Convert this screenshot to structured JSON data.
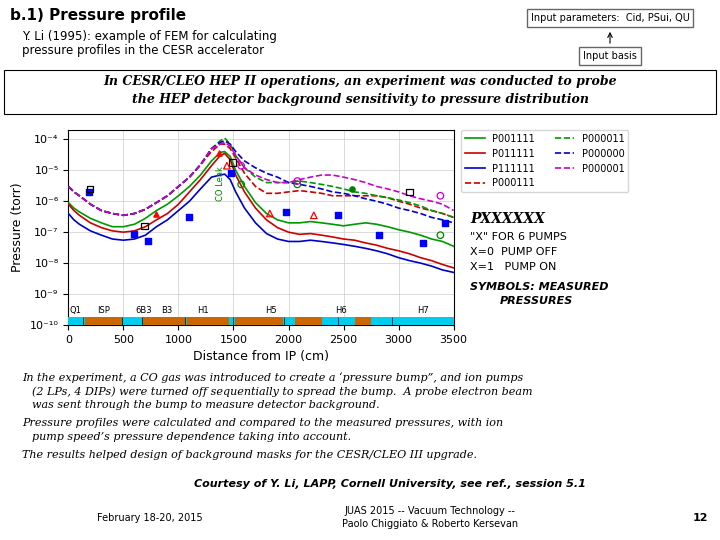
{
  "chart_data": {
    "type": "line",
    "title": "b.1) Pressure profile",
    "subtitle": [
      "Y. Li (1995): example of FEM for calculating",
      "pressure profiles in the CESR accelerator"
    ],
    "x_label": "Distance from IP (cm)",
    "y_label": "Pressure (torr)",
    "log": "y",
    "grid": true,
    "legend": "upper left",
    "xlim": [
      0,
      3500
    ],
    "ylim": [
      1e-10,
      0.0002
    ],
    "xticks": [
      0,
      500,
      1000,
      1500,
      2000,
      2500,
      3000,
      3500
    ],
    "yticks": [
      {
        "value": 1e-10,
        "label": "10⁻¹⁰"
      },
      {
        "value": 1e-09,
        "label": "10⁻⁹"
      },
      {
        "value": 1e-08,
        "label": "10⁻⁸"
      },
      {
        "value": 1e-07,
        "label": "10⁻⁷"
      },
      {
        "value": 1e-06,
        "label": "10⁻⁶"
      },
      {
        "value": 1e-05,
        "label": "10⁻⁵"
      },
      {
        "value": 0.0001,
        "label": "10⁻⁴"
      }
    ],
    "x": [
      0,
      50,
      100,
      200,
      300,
      400,
      500,
      600,
      700,
      800,
      900,
      1000,
      1100,
      1200,
      1300,
      1380,
      1420,
      1470,
      1520,
      1600,
      1700,
      1800,
      1900,
      2000,
      2100,
      2200,
      2300,
      2400,
      2500,
      2600,
      2700,
      2800,
      2900,
      3000,
      3100,
      3200,
      3300,
      3400,
      3500
    ],
    "series": [
      {
        "name": "P001111",
        "type": "line",
        "color": "#009900",
        "line_style": "solid",
        "values": [
          9e-07,
          6e-07,
          4.5e-07,
          2.8e-07,
          2e-07,
          1.5e-07,
          1.5e-07,
          1.8e-07,
          2.8e-07,
          5e-07,
          8e-07,
          1.5e-06,
          3e-06,
          7e-06,
          2e-05,
          3.8e-05,
          4e-05,
          2.8e-05,
          1e-05,
          3e-06,
          9e-07,
          4e-07,
          2.5e-07,
          2e-07,
          2e-07,
          2.2e-07,
          2e-07,
          1.8e-07,
          1.6e-07,
          1.8e-07,
          2e-07,
          1.8e-07,
          1.5e-07,
          1.2e-07,
          1e-07,
          8e-08,
          6e-08,
          5e-08,
          3.5e-08
        ]
      },
      {
        "name": "P011111",
        "type": "line",
        "color": "#cc0000",
        "line_style": "solid",
        "values": [
          8e-07,
          5e-07,
          3.5e-07,
          2e-07,
          1.4e-07,
          1.1e-07,
          1e-07,
          1.1e-07,
          1.5e-07,
          2.5e-07,
          4e-07,
          8e-07,
          2e-06,
          5e-06,
          1.4e-05,
          3e-05,
          3.5e-05,
          2.2e-05,
          7e-06,
          2e-06,
          6e-07,
          2.5e-07,
          1.4e-07,
          1e-07,
          8.5e-08,
          9e-08,
          8e-08,
          7e-08,
          6e-08,
          5.5e-08,
          4.5e-08,
          3.8e-08,
          3e-08,
          2.5e-08,
          2e-08,
          1.5e-08,
          1.2e-08,
          9e-09,
          7e-09
        ]
      },
      {
        "name": "P111111",
        "type": "line",
        "color": "#0000cc",
        "line_style": "solid",
        "values": [
          4e-07,
          2.5e-07,
          1.8e-07,
          1.1e-07,
          8e-08,
          6e-08,
          5.5e-08,
          6e-08,
          8e-08,
          1.5e-07,
          2.5e-07,
          5e-07,
          1e-06,
          2.5e-06,
          6e-06,
          7e-06,
          7.5e-06,
          5e-06,
          2e-06,
          6e-07,
          2e-07,
          9e-08,
          6e-08,
          5e-08,
          5e-08,
          5.5e-08,
          5e-08,
          4.5e-08,
          4e-08,
          3.5e-08,
          3e-08,
          2.5e-08,
          2e-08,
          1.5e-08,
          1.2e-08,
          1e-08,
          8e-09,
          6e-09,
          5e-09
        ]
      },
      {
        "name": "P000111",
        "type": "line",
        "color": "#cc0000",
        "line_style": "dashed",
        "values": [
          3e-06,
          2e-06,
          1.5e-06,
          8e-07,
          5e-07,
          4e-07,
          3.5e-07,
          4e-07,
          5.5e-07,
          9e-07,
          1.5e-06,
          3e-06,
          6e-06,
          1.5e-05,
          4e-05,
          7e-05,
          7e-05,
          5e-05,
          2.5e-05,
          8e-06,
          3e-06,
          1.8e-06,
          1.8e-06,
          2e-06,
          2.2e-06,
          2e-06,
          1.8e-06,
          1.5e-06,
          1.5e-06,
          1.5e-06,
          1.5e-06,
          1.5e-06,
          1.3e-06,
          1e-06,
          8e-07,
          6e-07,
          5e-07,
          4e-07,
          3e-07
        ]
      },
      {
        "name": "P000011",
        "type": "line",
        "color": "#009900",
        "line_style": "dashed",
        "values": [
          3e-06,
          2e-06,
          1.5e-06,
          8e-07,
          5e-07,
          4e-07,
          3.5e-07,
          4e-07,
          5.5e-07,
          9e-07,
          1.5e-06,
          3e-06,
          6e-06,
          1.5e-05,
          5e-05,
          9e-05,
          0.00011,
          7e-05,
          3e-05,
          1.2e-05,
          6e-06,
          4e-06,
          4e-06,
          4e-06,
          4.5e-06,
          4e-06,
          3.5e-06,
          3e-06,
          2.5e-06,
          2e-06,
          1.8e-06,
          1.5e-06,
          1.3e-06,
          1.1e-06,
          9e-07,
          7e-07,
          5e-07,
          4e-07,
          3e-07
        ]
      },
      {
        "name": "P000000",
        "type": "line",
        "color": "#0000cc",
        "line_style": "dashed",
        "values": [
          3e-06,
          2e-06,
          1.5e-06,
          8e-07,
          5e-07,
          4e-07,
          3.5e-07,
          4e-07,
          5.5e-07,
          9e-07,
          1.5e-06,
          3e-06,
          6e-06,
          1.5e-05,
          5e-05,
          8e-05,
          9e-05,
          7e-05,
          4e-05,
          2e-05,
          1.2e-05,
          8e-06,
          6e-06,
          4e-06,
          3.5e-06,
          3e-06,
          2.5e-06,
          2e-06,
          1.8e-06,
          1.5e-06,
          1.2e-06,
          1e-06,
          8e-07,
          6e-07,
          5e-07,
          4e-07,
          3e-07,
          2.5e-07,
          2e-07
        ]
      },
      {
        "name": "P000001",
        "type": "line",
        "color": "#cc00cc",
        "line_style": "dashed",
        "values": [
          3e-06,
          2e-06,
          1.5e-06,
          8e-07,
          5e-07,
          4e-07,
          3.5e-07,
          4e-07,
          5.5e-07,
          9e-07,
          1.5e-06,
          3e-06,
          6e-06,
          1.5e-05,
          5e-05,
          7e-05,
          8e-05,
          6e-05,
          3e-05,
          1.2e-05,
          7e-06,
          5e-06,
          4e-06,
          4e-06,
          5e-06,
          6e-06,
          7e-06,
          7e-06,
          6e-06,
          5e-06,
          4e-06,
          3e-06,
          2.5e-06,
          2e-06,
          1.5e-06,
          1.2e-06,
          1e-06,
          8e-07,
          5e-07
        ]
      },
      {
        "type": "scatter",
        "marker": "square",
        "color": "blue",
        "x": [
          185,
          600,
          720,
          1100,
          1480,
          1980,
          2450,
          2820,
          3220,
          3420
        ],
        "values": [
          2e-06,
          9e-08,
          5e-08,
          3e-07,
          8e-06,
          4.5e-07,
          3.5e-07,
          8e-08,
          4.5e-08,
          2e-07
        ]
      },
      {
        "type": "scatter",
        "marker": "open_square",
        "color": "black",
        "x": [
          195,
          690,
          1490,
          3100
        ],
        "values": [
          2.5e-06,
          1.6e-07,
          1.8e-05,
          2e-06
        ]
      },
      {
        "type": "scatter",
        "marker": "triangle",
        "color": "red",
        "x": [
          800,
          1370
        ],
        "values": [
          4e-07,
          3.5e-05
        ]
      },
      {
        "type": "scatter",
        "marker": "open_triangle",
        "color": "red",
        "x": [
          1440,
          1830,
          2230
        ],
        "values": [
          1.4e-05,
          4e-07,
          3.5e-07
        ]
      },
      {
        "type": "scatter",
        "marker": "open_circle",
        "color": "green",
        "x": [
          1570,
          2080,
          3380
        ],
        "values": [
          3.5e-06,
          3.5e-06,
          8e-08
        ]
      },
      {
        "type": "scatter",
        "marker": "circle",
        "color": "green",
        "x": [
          2580
        ],
        "values": [
          2.5e-06
        ]
      },
      {
        "type": "scatter",
        "marker": "open_circle",
        "color": "#cc00cc",
        "x": [
          1570,
          2080,
          3380
        ],
        "values": [
          1.4e-05,
          4.5e-06,
          1.5e-06
        ]
      }
    ],
    "annotations": [
      {
        "text": "CO Leak",
        "x": 1380,
        "y": 1e-06,
        "color": "green"
      },
      {
        "text": "Q1",
        "x": 60
      },
      {
        "text": "ISP",
        "x": 320
      },
      {
        "text": "6B3",
        "x": 680
      },
      {
        "text": "B3",
        "x": 890
      },
      {
        "text": "H1",
        "x": 1220
      },
      {
        "text": "H5",
        "x": 1840
      },
      {
        "text": "H6",
        "x": 2480
      },
      {
        "text": "H7",
        "x": 3220
      }
    ],
    "band_color": "#00ccee",
    "band_separators": [
      130,
      490,
      670,
      1060,
      1500,
      1960,
      2450,
      2940
    ],
    "band_segments": [
      [
        150,
        490
      ],
      [
        680,
        1060
      ],
      [
        1080,
        1460
      ],
      [
        1510,
        1950
      ],
      [
        2060,
        2300
      ],
      [
        2600,
        2750
      ]
    ],
    "band_segment_color": "#cc6600",
    "slide": {
      "diagram": [
        "Input parameters:  Cid, PSui, QU",
        "Input basis"
      ],
      "box": [
        "In CESR/CLEO HEP II operations, an experiment was conducted to probe",
        "the HEP detector background sensitivity to pressure distribution"
      ],
      "key": [
        "PXXXXXX",
        "\"X\" FOR 6 PUMPS",
        "X=0  PUMP OFF",
        "X=1   PUMP ON",
        "SYMBOLS: MEASURED",
        "PRESSURES"
      ],
      "bullets": [
        [
          "In the experiment, a CO gas was introduced to create a ‘pressure bump”, and ion pumps",
          "(2 LPs, 4 DIPs) were turned off sequentially to spread the bump.  A probe electron beam",
          "was sent through the bump to measure detector background."
        ],
        [
          "Pressure profiles were calculated and compared to the measured pressures, with ion",
          "pump speed’s pressure dependence taking into account."
        ],
        [
          "The results helped design of background masks for the CESR/CLEO III upgrade."
        ]
      ],
      "courtesy": "Courtesy of Y. Li, LAPP, Cornell University, see ref., session 5.1",
      "footer_left": "February 18-20, 2015",
      "footer_center": [
        "JUAS 2015 -- Vacuum Technology --",
        "Paolo Chiggiato & Roberto Kersevan"
      ],
      "footer_right": "12"
    }
  }
}
